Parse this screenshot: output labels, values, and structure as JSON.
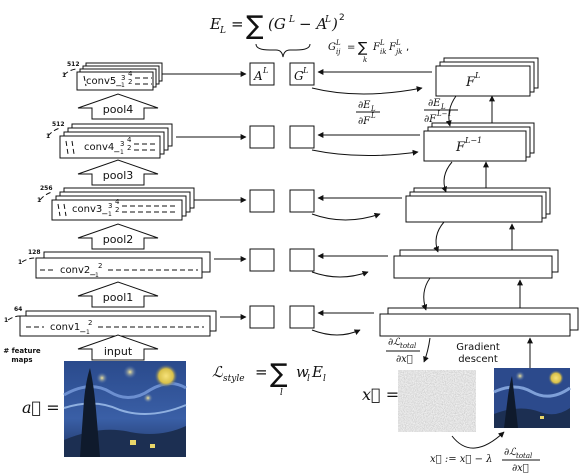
{
  "equations": {
    "el": "E_L = ∑ (G^L − A^L)²",
    "gram": "G^L_ij = ∑_k F^L_ik F^L_jk,",
    "grad_top": "∂E_L / ∂F^L",
    "grad_second": "∂E_L / ∂F^(L−1)",
    "style_loss": "ℒ_style = ∑_l w_l E_l",
    "dl_dx": "∂ℒ_total / ∂x⃗",
    "update": "x⃗ := x⃗ − λ ∂ℒ_total / ∂x⃗"
  },
  "eq_parts": {
    "el_lhs": "E",
    "el_sub": "L",
    "el_eq": "=",
    "sigma": "∑",
    "el_body": "(G",
    "el_sup1": "L",
    "el_minus": "− A",
    "el_sup2": "L",
    "el_close": ")",
    "el_sq": "2",
    "gram_G": "G",
    "gram_sup": "L",
    "gram_sub": "ij",
    "gram_eq": "=",
    "gram_sum": "∑",
    "gram_k": "k",
    "gram_rhs": "F",
    "gram_rhs_sup": "L",
    "gram_rhs_sub": "ik",
    "gram_rhs2": "F",
    "gram_rhs2_sup": "L",
    "gram_rhs2_sub": "jk",
    "gram_comma": ",",
    "g1_num": "∂E",
    "g1_num_sub": "L",
    "g1_den": "∂F",
    "g1_den_sup": "L",
    "g2_num": "∂E",
    "g2_num_sub": "L",
    "g2_den": "∂F",
    "g2_den_sup": "L−1",
    "style_L": "ℒ",
    "style_sub": "style",
    "style_eq": "=",
    "style_sum": "∑",
    "style_l": "l",
    "style_w": "w",
    "style_w_sub": "l",
    "style_E": "E",
    "style_E_sub": "l",
    "dl_num": "∂ℒ",
    "dl_num_sub": "total",
    "dl_den": "∂x⃗",
    "upd_lhs": "x⃗ := x⃗ − λ",
    "upd_num": "∂ℒ",
    "upd_num_sub": "total",
    "upd_den": "∂x⃗",
    "a_vec": "a⃗ =",
    "x_vec": "x⃗ ="
  },
  "cnn": {
    "layers": [
      {
        "label": "conv5_",
        "sub": "1",
        "sup1": "3",
        "sup2": "4",
        "sup3": "2",
        "channels": "512",
        "min": "1"
      },
      {
        "label": "conv4_",
        "sub": "1",
        "sup1": "3",
        "sup2": "4",
        "sup3": "2",
        "channels": "512",
        "min": "1"
      },
      {
        "label": "conv3_",
        "sub": "1",
        "sup1": "3",
        "sup2": "4",
        "sup3": "2",
        "channels": "256",
        "min": "1"
      },
      {
        "label": "conv2_",
        "sub": "1",
        "sup1": "2",
        "sup2": "",
        "sup3": "",
        "channels": "128",
        "min": "1"
      },
      {
        "label": "conv1_",
        "sub": "1",
        "sup1": "2",
        "sup2": "",
        "sup3": "",
        "channels": "64",
        "min": "1"
      }
    ],
    "pools": [
      "pool4",
      "pool3",
      "pool2",
      "pool1"
    ],
    "input_label": "input",
    "feature_maps_label": "# feature\nmaps",
    "feature_maps_line1": "# feature",
    "feature_maps_line2": "maps"
  },
  "style_boxes": {
    "a_top": "A",
    "a_top_sup": "L",
    "g_top": "G",
    "g_top_sup": "L"
  },
  "right_stack": {
    "top_label": "F",
    "top_sup": "L",
    "second_label": "F",
    "second_sup": "L−1"
  },
  "gradient_descent": "Gradient\ndescent",
  "gradient_line1": "Gradient",
  "gradient_line2": "descent",
  "images": {
    "content": "Starry Night painting",
    "noise": "white noise image",
    "result": "stylized output image"
  },
  "colors": {
    "stroke": "#111111",
    "noise_gray": "#8c8c8c",
    "night_blue": "#233a6e"
  }
}
